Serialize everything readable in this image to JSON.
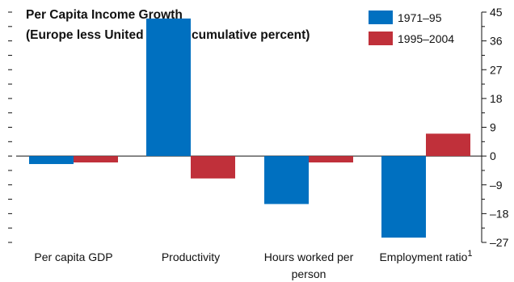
{
  "chart_data": {
    "type": "bar",
    "title": "Per Capita Income Growth",
    "subtitle": "(Europe less United States, cumulative percent)",
    "categories": [
      "Per capita GDP",
      "Productivity",
      "Hours worked per person",
      "Employment ratio"
    ],
    "category_superscripts": [
      "",
      "",
      "",
      "1"
    ],
    "series": [
      {
        "name": "1971–95",
        "color": "#0070c0",
        "values": [
          -2.5,
          43,
          -15,
          -25.5
        ]
      },
      {
        "name": "1995–2004",
        "color": "#c0303a",
        "values": [
          -2,
          -7,
          -2,
          7
        ]
      }
    ],
    "yaxis": {
      "position": "right",
      "ylim": [
        -27,
        45
      ],
      "labeled_ticks": [
        45,
        36,
        27,
        18,
        9,
        0,
        -9,
        -18,
        -27
      ],
      "tick_labels": [
        "45",
        "36",
        "27",
        "18",
        "9",
        "0",
        "–9",
        "–18",
        "–27"
      ],
      "minor_step": 4.5
    },
    "xlabel": "",
    "ylabel": "",
    "grid": false,
    "legend": "top-right"
  }
}
